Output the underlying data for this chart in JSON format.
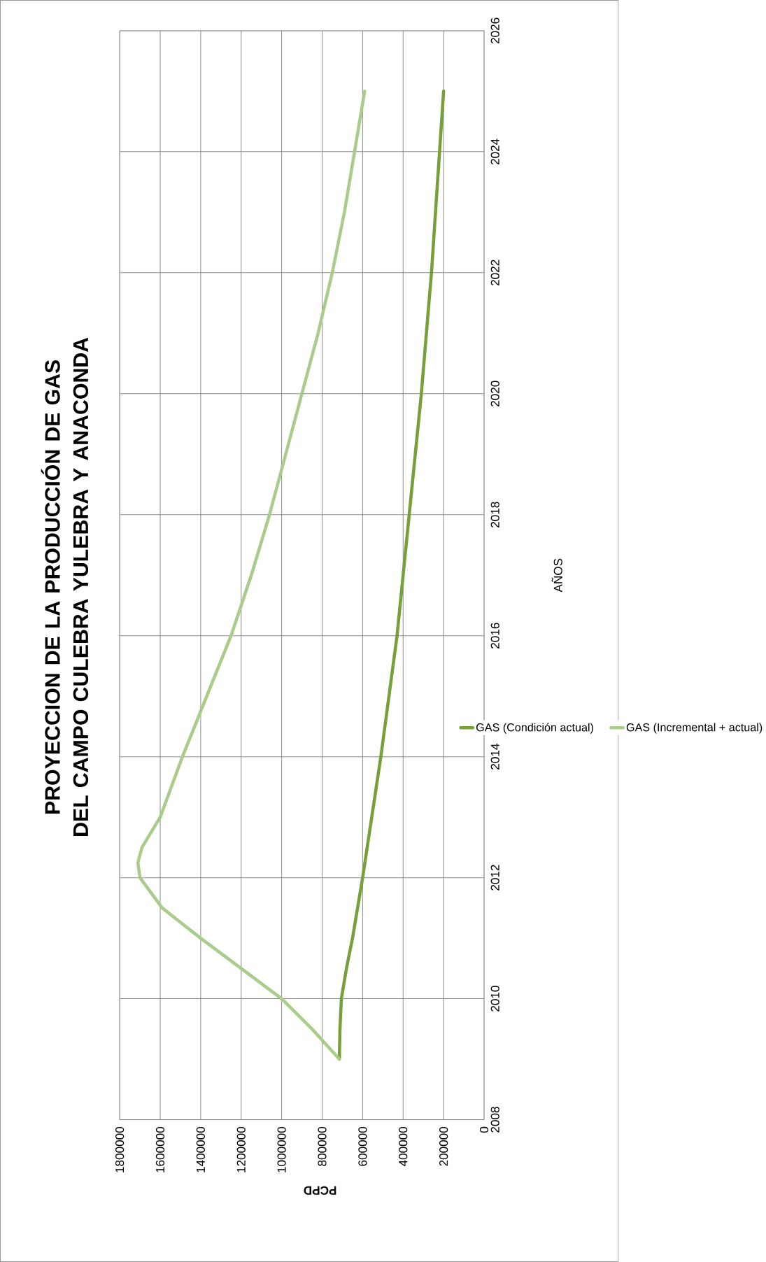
{
  "chart_data": {
    "type": "line",
    "title": "PROYECCION DE LA PRODUCCIÓN DE GAS DEL CAMPO CULEBRA YULEBRA Y ANACONDA",
    "xlabel": "PCPD",
    "ylabel": "AÑOS",
    "xlim": [
      1800000,
      0
    ],
    "xticks": [
      0,
      200000,
      400000,
      600000,
      800000,
      1000000,
      1200000,
      1400000,
      1600000,
      1800000
    ],
    "ylim": [
      2008,
      2026
    ],
    "yticks": [
      2008,
      2010,
      2012,
      2014,
      2016,
      2018,
      2020,
      2022,
      2024,
      2026
    ],
    "grid": true,
    "legend": "right",
    "marker": "none",
    "line_style": "solid",
    "series": [
      {
        "name": "GAS (Condición actual)",
        "color": "#77a03a",
        "x": [
          715000,
          712000,
          705000,
          680000,
          650000,
          600000,
          555000,
          510000,
          470000,
          430000,
          400000,
          370000,
          340000,
          310000,
          285000,
          260000,
          240000,
          220000,
          200000
        ],
        "values": [
          2009,
          2009.5,
          2010,
          2010.5,
          2011,
          2012,
          2013,
          2014,
          2015,
          2016,
          2017,
          2018,
          2019,
          2020,
          2021,
          2022,
          2023,
          2024,
          2025
        ]
      },
      {
        "name": "GAS (Incremental + actual)",
        "color": "#a9cc8a",
        "x": [
          715000,
          850000,
          1000000,
          1200000,
          1400000,
          1590000,
          1700000,
          1710000,
          1690000,
          1600000,
          1490000,
          1370000,
          1250000,
          1150000,
          1060000,
          980000,
          900000,
          820000,
          750000,
          690000,
          640000,
          590000
        ],
        "values": [
          2009,
          2009.5,
          2010,
          2010.5,
          2011,
          2011.5,
          2012,
          2012.25,
          2012.5,
          2013,
          2014,
          2015,
          2016,
          2017,
          2018,
          2019,
          2020,
          2021,
          2022,
          2023,
          2024,
          2025
        ]
      }
    ]
  }
}
